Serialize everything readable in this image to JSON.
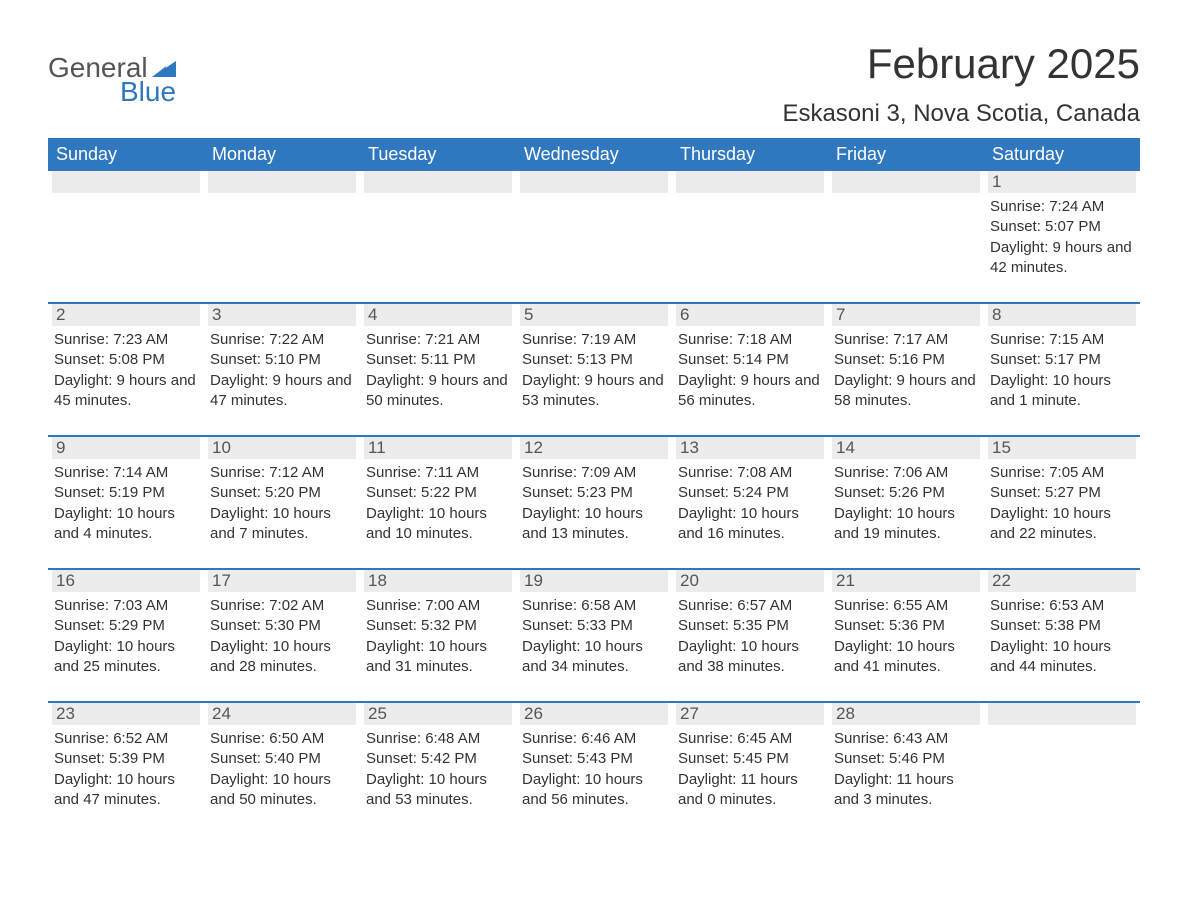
{
  "brand": {
    "text1": "General",
    "text2": "Blue",
    "triangle_color": "#2f78c0"
  },
  "title": "February 2025",
  "location": "Eskasoni 3, Nova Scotia, Canada",
  "colors": {
    "header_bg": "#2f78c0",
    "header_text": "#ffffff",
    "daynum_bg": "#ececec",
    "row_divider": "#2f78c0",
    "body_text": "#333333",
    "page_bg": "#ffffff"
  },
  "typography": {
    "title_fontsize": 42,
    "location_fontsize": 24,
    "weekday_fontsize": 18,
    "daynum_fontsize": 17,
    "body_fontsize": 15
  },
  "layout": {
    "columns": 7,
    "rows": 5
  },
  "weekdays": [
    "Sunday",
    "Monday",
    "Tuesday",
    "Wednesday",
    "Thursday",
    "Friday",
    "Saturday"
  ],
  "weeks": [
    [
      null,
      null,
      null,
      null,
      null,
      null,
      {
        "n": "1",
        "sunrise": "Sunrise: 7:24 AM",
        "sunset": "Sunset: 5:07 PM",
        "daylight": "Daylight: 9 hours and 42 minutes."
      }
    ],
    [
      {
        "n": "2",
        "sunrise": "Sunrise: 7:23 AM",
        "sunset": "Sunset: 5:08 PM",
        "daylight": "Daylight: 9 hours and 45 minutes."
      },
      {
        "n": "3",
        "sunrise": "Sunrise: 7:22 AM",
        "sunset": "Sunset: 5:10 PM",
        "daylight": "Daylight: 9 hours and 47 minutes."
      },
      {
        "n": "4",
        "sunrise": "Sunrise: 7:21 AM",
        "sunset": "Sunset: 5:11 PM",
        "daylight": "Daylight: 9 hours and 50 minutes."
      },
      {
        "n": "5",
        "sunrise": "Sunrise: 7:19 AM",
        "sunset": "Sunset: 5:13 PM",
        "daylight": "Daylight: 9 hours and 53 minutes."
      },
      {
        "n": "6",
        "sunrise": "Sunrise: 7:18 AM",
        "sunset": "Sunset: 5:14 PM",
        "daylight": "Daylight: 9 hours and 56 minutes."
      },
      {
        "n": "7",
        "sunrise": "Sunrise: 7:17 AM",
        "sunset": "Sunset: 5:16 PM",
        "daylight": "Daylight: 9 hours and 58 minutes."
      },
      {
        "n": "8",
        "sunrise": "Sunrise: 7:15 AM",
        "sunset": "Sunset: 5:17 PM",
        "daylight": "Daylight: 10 hours and 1 minute."
      }
    ],
    [
      {
        "n": "9",
        "sunrise": "Sunrise: 7:14 AM",
        "sunset": "Sunset: 5:19 PM",
        "daylight": "Daylight: 10 hours and 4 minutes."
      },
      {
        "n": "10",
        "sunrise": "Sunrise: 7:12 AM",
        "sunset": "Sunset: 5:20 PM",
        "daylight": "Daylight: 10 hours and 7 minutes."
      },
      {
        "n": "11",
        "sunrise": "Sunrise: 7:11 AM",
        "sunset": "Sunset: 5:22 PM",
        "daylight": "Daylight: 10 hours and 10 minutes."
      },
      {
        "n": "12",
        "sunrise": "Sunrise: 7:09 AM",
        "sunset": "Sunset: 5:23 PM",
        "daylight": "Daylight: 10 hours and 13 minutes."
      },
      {
        "n": "13",
        "sunrise": "Sunrise: 7:08 AM",
        "sunset": "Sunset: 5:24 PM",
        "daylight": "Daylight: 10 hours and 16 minutes."
      },
      {
        "n": "14",
        "sunrise": "Sunrise: 7:06 AM",
        "sunset": "Sunset: 5:26 PM",
        "daylight": "Daylight: 10 hours and 19 minutes."
      },
      {
        "n": "15",
        "sunrise": "Sunrise: 7:05 AM",
        "sunset": "Sunset: 5:27 PM",
        "daylight": "Daylight: 10 hours and 22 minutes."
      }
    ],
    [
      {
        "n": "16",
        "sunrise": "Sunrise: 7:03 AM",
        "sunset": "Sunset: 5:29 PM",
        "daylight": "Daylight: 10 hours and 25 minutes."
      },
      {
        "n": "17",
        "sunrise": "Sunrise: 7:02 AM",
        "sunset": "Sunset: 5:30 PM",
        "daylight": "Daylight: 10 hours and 28 minutes."
      },
      {
        "n": "18",
        "sunrise": "Sunrise: 7:00 AM",
        "sunset": "Sunset: 5:32 PM",
        "daylight": "Daylight: 10 hours and 31 minutes."
      },
      {
        "n": "19",
        "sunrise": "Sunrise: 6:58 AM",
        "sunset": "Sunset: 5:33 PM",
        "daylight": "Daylight: 10 hours and 34 minutes."
      },
      {
        "n": "20",
        "sunrise": "Sunrise: 6:57 AM",
        "sunset": "Sunset: 5:35 PM",
        "daylight": "Daylight: 10 hours and 38 minutes."
      },
      {
        "n": "21",
        "sunrise": "Sunrise: 6:55 AM",
        "sunset": "Sunset: 5:36 PM",
        "daylight": "Daylight: 10 hours and 41 minutes."
      },
      {
        "n": "22",
        "sunrise": "Sunrise: 6:53 AM",
        "sunset": "Sunset: 5:38 PM",
        "daylight": "Daylight: 10 hours and 44 minutes."
      }
    ],
    [
      {
        "n": "23",
        "sunrise": "Sunrise: 6:52 AM",
        "sunset": "Sunset: 5:39 PM",
        "daylight": "Daylight: 10 hours and 47 minutes."
      },
      {
        "n": "24",
        "sunrise": "Sunrise: 6:50 AM",
        "sunset": "Sunset: 5:40 PM",
        "daylight": "Daylight: 10 hours and 50 minutes."
      },
      {
        "n": "25",
        "sunrise": "Sunrise: 6:48 AM",
        "sunset": "Sunset: 5:42 PM",
        "daylight": "Daylight: 10 hours and 53 minutes."
      },
      {
        "n": "26",
        "sunrise": "Sunrise: 6:46 AM",
        "sunset": "Sunset: 5:43 PM",
        "daylight": "Daylight: 10 hours and 56 minutes."
      },
      {
        "n": "27",
        "sunrise": "Sunrise: 6:45 AM",
        "sunset": "Sunset: 5:45 PM",
        "daylight": "Daylight: 11 hours and 0 minutes."
      },
      {
        "n": "28",
        "sunrise": "Sunrise: 6:43 AM",
        "sunset": "Sunset: 5:46 PM",
        "daylight": "Daylight: 11 hours and 3 minutes."
      },
      null
    ]
  ]
}
